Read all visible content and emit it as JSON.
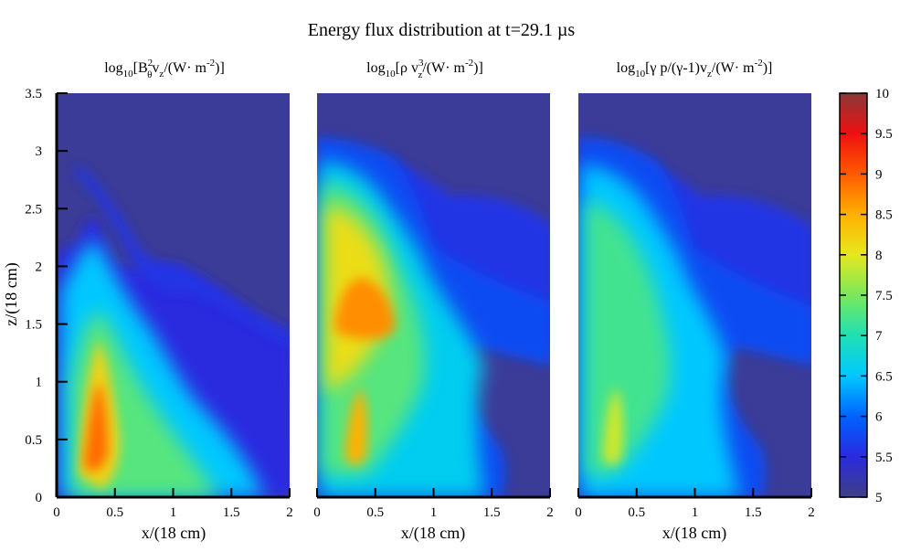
{
  "chart_data": {
    "type": "heatmap",
    "title": "Energy flux distribution at t=29.1 µs",
    "panels": [
      {
        "id": "magnetic",
        "title_parts": [
          "log",
          "10",
          "[B",
          "2",
          "θ",
          "v",
          "z",
          "/(W· m",
          "-2",
          ")]"
        ],
        "xlabel": "x/(18 cm)",
        "x_ticks": [
          "0",
          "0.5",
          "1",
          "1.5",
          "2"
        ],
        "x_values": [
          0,
          0.5,
          1,
          1.5,
          2
        ],
        "xlim": [
          0,
          2
        ],
        "ylim": [
          0,
          3.5
        ]
      },
      {
        "id": "kinetic",
        "title_parts": [
          "log",
          "10",
          "[ρ v",
          "3",
          "z",
          "/(W· m",
          "-2",
          ")]"
        ],
        "xlabel": "x/(18 cm)",
        "x_ticks": [
          "0",
          "0.5",
          "1",
          "1.5",
          "2"
        ],
        "x_values": [
          0,
          0.5,
          1,
          1.5,
          2
        ],
        "xlim": [
          0,
          2
        ],
        "ylim": [
          0,
          3.5
        ]
      },
      {
        "id": "enthalpy",
        "title_parts": [
          "log",
          "10",
          "[γ p/(γ-1)v",
          "z",
          "/(W· m",
          "-2",
          ")]"
        ],
        "xlabel": "x/(18 cm)",
        "x_ticks": [
          "0",
          "0.5",
          "1",
          "1.5",
          "2"
        ],
        "x_values": [
          0,
          0.5,
          1,
          1.5,
          2
        ],
        "xlim": [
          0,
          2
        ],
        "ylim": [
          0,
          3.5
        ]
      }
    ],
    "ylabel": "z/(18 cm)",
    "y_ticks": [
      "0",
      "0.5",
      "1",
      "1.5",
      "2",
      "2.5",
      "3",
      "3.5"
    ],
    "y_values": [
      0,
      0.5,
      1,
      1.5,
      2,
      2.5,
      3,
      3.5
    ],
    "colorbar": {
      "range": [
        5,
        10
      ],
      "ticks": [
        "5",
        "5.5",
        "6",
        "6.5",
        "7",
        "7.5",
        "8",
        "8.5",
        "9",
        "9.5",
        "10"
      ],
      "values": [
        5,
        5.5,
        6,
        6.5,
        7,
        7.5,
        8,
        8.5,
        9,
        9.5,
        10
      ],
      "colormap": "jet",
      "stops": [
        "#3f3f86",
        "#2a2adf",
        "#0062ff",
        "#00c8ff",
        "#1fe0b4",
        "#7ae85a",
        "#e6e81e",
        "#ffb000",
        "#ff5a00",
        "#ee1010",
        "#8a3838"
      ]
    },
    "background_level": 5.1
  }
}
